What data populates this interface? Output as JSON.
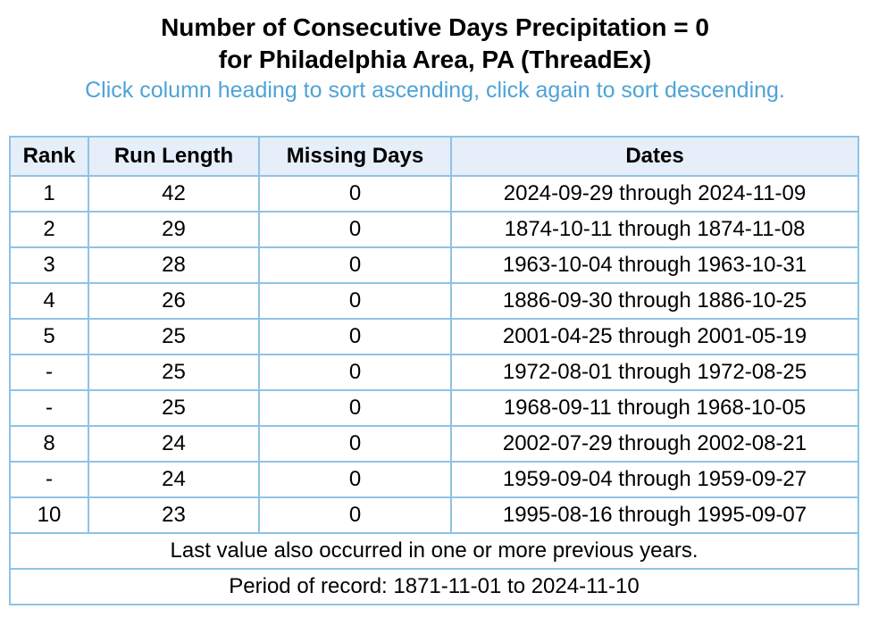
{
  "header": {
    "title_line1": "Number of Consecutive Days Precipitation = 0",
    "title_line2": "for Philadelphia Area, PA (ThreadEx)",
    "instructions": "Click column heading to sort ascending, click again to sort descending."
  },
  "table": {
    "columns": [
      "Rank",
      "Run Length",
      "Missing Days",
      "Dates"
    ],
    "rows": [
      [
        "1",
        "42",
        "0",
        "2024-09-29 through 2024-11-09"
      ],
      [
        "2",
        "29",
        "0",
        "1874-10-11 through 1874-11-08"
      ],
      [
        "3",
        "28",
        "0",
        "1963-10-04 through 1963-10-31"
      ],
      [
        "4",
        "26",
        "0",
        "1886-09-30 through 1886-10-25"
      ],
      [
        "5",
        "25",
        "0",
        "2001-04-25 through 2001-05-19"
      ],
      [
        "-",
        "25",
        "0",
        "1972-08-01 through 1972-08-25"
      ],
      [
        "-",
        "25",
        "0",
        "1968-09-11 through 1968-10-05"
      ],
      [
        "8",
        "24",
        "0",
        "2002-07-29 through 2002-08-21"
      ],
      [
        "-",
        "24",
        "0",
        "1959-09-04 through 1959-09-27"
      ],
      [
        "10",
        "23",
        "0",
        "1995-08-16 through 1995-09-07"
      ]
    ],
    "footnote": "Last value also occurred in one or more previous years.",
    "period": "Period of record: 1871-11-01 to 2024-11-10"
  },
  "colors": {
    "border": "#8fc3e6",
    "header_highlight": "#e5eef9",
    "instruction_text": "#4ea3d6"
  }
}
